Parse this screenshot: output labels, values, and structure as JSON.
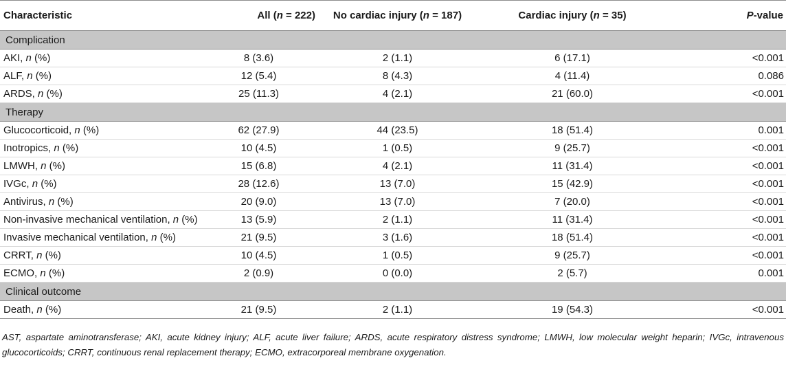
{
  "table": {
    "headers": {
      "characteristic": "Characteristic",
      "all_prefix": "All (",
      "all_n": "n",
      "all_suffix": " = 222)",
      "no_prefix": "No cardiac injury (",
      "no_n": "n",
      "no_suffix": " = 187)",
      "ci_prefix": "Cardiac injury (",
      "ci_n": "n",
      "ci_suffix": " = 35)",
      "p_letter": "P",
      "p_suffix": "-value"
    },
    "sections": [
      {
        "title": "Complication",
        "rows": [
          {
            "name": "AKI, ",
            "unit_n": "n",
            "unit_rest": " (%)",
            "all": "8 (3.6)",
            "no": "2 (1.1)",
            "ci": "6 (17.1)",
            "p": "<0.001"
          },
          {
            "name": "ALF, ",
            "unit_n": "n",
            "unit_rest": " (%)",
            "all": "12 (5.4)",
            "no": "8 (4.3)",
            "ci": "4 (11.4)",
            "p": "0.086"
          },
          {
            "name": "ARDS, ",
            "unit_n": "n",
            "unit_rest": " (%)",
            "all": "25 (11.3)",
            "no": "4 (2.1)",
            "ci": "21 (60.0)",
            "p": "<0.001"
          }
        ]
      },
      {
        "title": "Therapy",
        "rows": [
          {
            "name": "Glucocorticoid, ",
            "unit_n": "n",
            "unit_rest": " (%)",
            "all": "62 (27.9)",
            "no": "44 (23.5)",
            "ci": "18 (51.4)",
            "p": "0.001"
          },
          {
            "name": "Inotropics, ",
            "unit_n": "n",
            "unit_rest": " (%)",
            "all": "10 (4.5)",
            "no": "1 (0.5)",
            "ci": "9 (25.7)",
            "p": "<0.001"
          },
          {
            "name": "LMWH, ",
            "unit_n": "n",
            "unit_rest": " (%)",
            "all": "15 (6.8)",
            "no": "4 (2.1)",
            "ci": "11 (31.4)",
            "p": "<0.001"
          },
          {
            "name": "IVGc, ",
            "unit_n": "n",
            "unit_rest": " (%)",
            "all": "28 (12.6)",
            "no": "13 (7.0)",
            "ci": "15 (42.9)",
            "p": "<0.001"
          },
          {
            "name": "Antivirus, ",
            "unit_n": "n",
            "unit_rest": " (%)",
            "all": "20 (9.0)",
            "no": "13 (7.0)",
            "ci": "7 (20.0)",
            "p": "<0.001"
          },
          {
            "name": "Non-invasive mechanical ventilation, ",
            "unit_n": "n",
            "unit_rest": " (%)",
            "all": "13 (5.9)",
            "no": "2 (1.1)",
            "ci": "11 (31.4)",
            "p": "<0.001"
          },
          {
            "name": "Invasive mechanical ventilation, ",
            "unit_n": "n",
            "unit_rest": " (%)",
            "all": "21 (9.5)",
            "no": "3 (1.6)",
            "ci": "18 (51.4)",
            "p": "<0.001"
          },
          {
            "name": "CRRT, ",
            "unit_n": "n",
            "unit_rest": " (%)",
            "all": "10 (4.5)",
            "no": "1 (0.5)",
            "ci": "9 (25.7)",
            "p": "<0.001"
          },
          {
            "name": "ECMO, ",
            "unit_n": "n",
            "unit_rest": " (%)",
            "all": "2 (0.9)",
            "no": "0 (0.0)",
            "ci": "2 (5.7)",
            "p": "0.001"
          }
        ]
      },
      {
        "title": "Clinical outcome",
        "rows": [
          {
            "name": "Death, ",
            "unit_n": "n",
            "unit_rest": " (%)",
            "all": "21 (9.5)",
            "no": "2 (1.1)",
            "ci": "19 (54.3)",
            "p": "<0.001"
          }
        ]
      }
    ]
  },
  "footnote": "AST, aspartate aminotransferase; AKI, acute kidney injury; ALF, acute liver failure; ARDS, acute respiratory distress syndrome; LMWH, low molecular weight heparin; IVGc, intravenous glucocorticoids; CRRT, continuous renal replacement therapy; ECMO, extracorporeal membrane oxygenation."
}
